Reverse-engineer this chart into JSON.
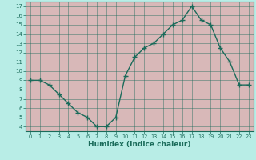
{
  "x": [
    0,
    1,
    2,
    3,
    4,
    5,
    6,
    7,
    8,
    9,
    10,
    11,
    12,
    13,
    14,
    15,
    16,
    17,
    18,
    19,
    20,
    21,
    22,
    23
  ],
  "y": [
    9.0,
    9.0,
    8.5,
    7.5,
    6.5,
    5.5,
    5.0,
    4.0,
    4.0,
    5.0,
    9.5,
    11.5,
    12.5,
    13.0,
    14.0,
    15.0,
    15.5,
    17.0,
    15.5,
    15.0,
    12.5,
    11.0,
    8.5,
    8.5
  ],
  "xlabel": "Humidex (Indice chaleur)",
  "ylim": [
    3.5,
    17.5
  ],
  "xlim": [
    -0.5,
    23.5
  ],
  "yticks": [
    4,
    5,
    6,
    7,
    8,
    9,
    10,
    11,
    12,
    13,
    14,
    15,
    16,
    17
  ],
  "xticks": [
    0,
    1,
    2,
    3,
    4,
    5,
    6,
    7,
    8,
    9,
    10,
    11,
    12,
    13,
    14,
    15,
    16,
    17,
    18,
    19,
    20,
    21,
    22,
    23
  ],
  "line_color": "#1a6b5a",
  "bg_color": "#b8ede6",
  "cell_color": "#d8b8b8",
  "grid_line_color": "#1a6b5a"
}
